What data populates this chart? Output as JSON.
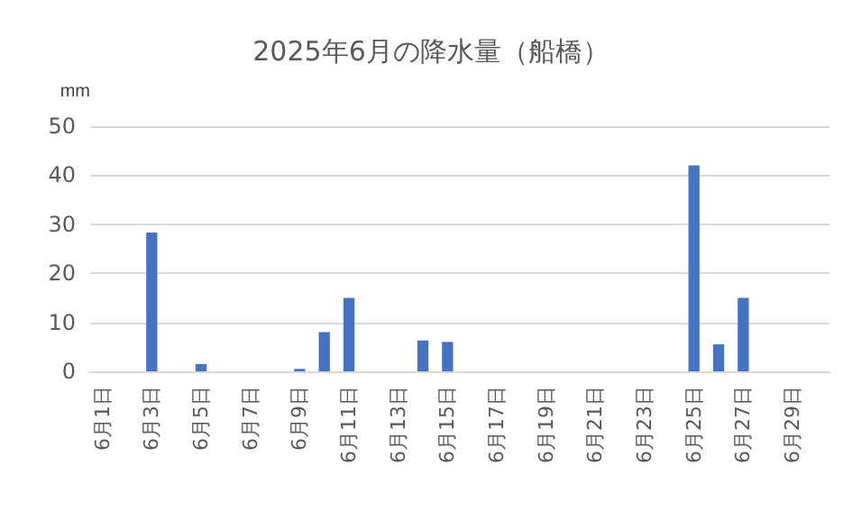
{
  "chart_data": {
    "type": "bar",
    "title": "2025年6月の降水量（船橋）",
    "ylabel": "mm",
    "categories": [
      "6月1日",
      null,
      "6月3日",
      null,
      "6月5日",
      null,
      "6月7日",
      null,
      "6月9日",
      null,
      "6月11日",
      null,
      "6月13日",
      null,
      "6月15日",
      null,
      "6月17日",
      null,
      "6月19日",
      null,
      "6月21日",
      null,
      "6月23日",
      null,
      "6月25日",
      null,
      "6月27日",
      null,
      "6月29日",
      null
    ],
    "values": [
      0,
      0,
      28.3,
      0,
      1.5,
      0,
      0,
      0,
      0.5,
      8,
      15,
      0,
      0,
      6.3,
      6,
      0,
      0,
      0,
      0,
      0,
      0,
      0,
      0,
      0,
      42,
      5.5,
      15,
      0,
      0,
      0
    ],
    "color": "#4472c4",
    "ylim": [
      0,
      50
    ],
    "yticks": [
      0,
      10,
      20,
      30,
      40,
      50
    ],
    "grid": "y"
  }
}
